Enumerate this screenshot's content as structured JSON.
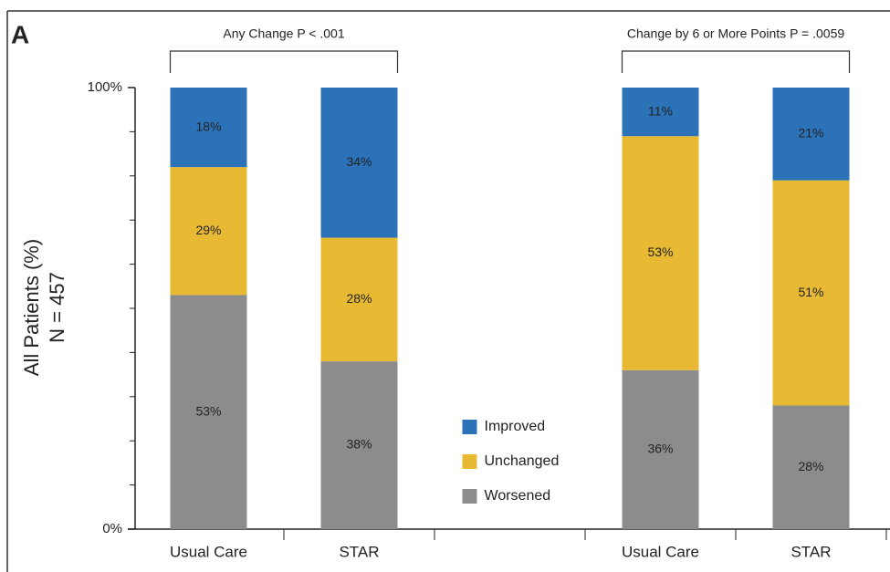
{
  "chart_data": {
    "type": "stacked_bar",
    "panel_label": "A",
    "ylabel": [
      "All Patients (%)",
      "N = 457"
    ],
    "annotations": [
      "Any Change  P < .001",
      "Change by 6 or More Points  P = .0059"
    ],
    "categories": [
      "Usual Care",
      "STAR",
      null,
      "Usual Care",
      "STAR"
    ],
    "series": [
      {
        "name": "Worsened",
        "color": "#8c8c8c",
        "values": [
          53,
          38,
          null,
          36,
          28
        ],
        "value_labels": [
          "53%",
          "38%",
          null,
          "36%",
          "28%"
        ]
      },
      {
        "name": "Unchanged",
        "color": "#e8b933",
        "values": [
          29,
          28,
          null,
          53,
          51
        ],
        "value_labels": [
          "29%",
          "28%",
          null,
          "53%",
          "51%"
        ]
      },
      {
        "name": "Improved",
        "color": "#2b72b9",
        "values": [
          18,
          34,
          null,
          11,
          21
        ],
        "value_labels": [
          "18%",
          "34%",
          null,
          "11%",
          "21%"
        ]
      }
    ],
    "ylim": [
      0,
      100
    ],
    "yticks": [
      {
        "value": 0,
        "label": "0%"
      },
      {
        "value": 100,
        "label": "100%"
      }
    ],
    "minor_yticks": [
      10,
      20,
      30,
      40,
      50,
      60,
      70,
      80,
      90
    ]
  }
}
